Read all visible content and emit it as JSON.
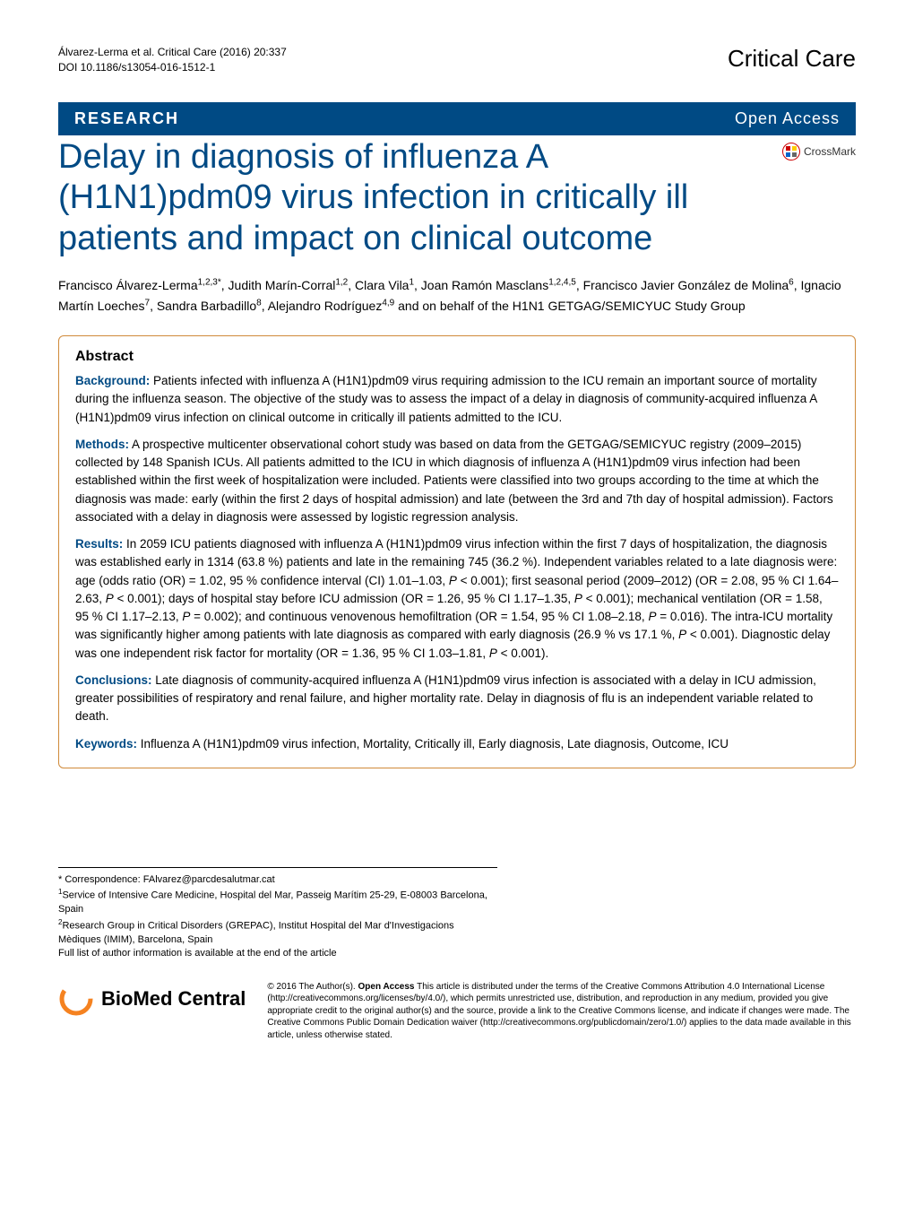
{
  "header": {
    "citation_line1": "Álvarez-Lerma et al. Critical Care  (2016) 20:337",
    "citation_line2": "DOI 10.1186/s13054-016-1512-1",
    "journal": "Critical Care"
  },
  "banner": {
    "left": "RESEARCH",
    "right": "Open Access"
  },
  "crossmark_label": "CrossMark",
  "title": "Delay in diagnosis of influenza A (H1N1)pdm09 virus infection in critically ill patients and impact on clinical outcome",
  "authors_html": "Francisco Álvarez-Lerma<sup>1,2,3*</sup>, Judith Marín-Corral<sup>1,2</sup>, Clara Vila<sup>1</sup>, Joan Ramón Masclans<sup>1,2,4,5</sup>, Francisco Javier González de Molina<sup>6</sup>, Ignacio Martín Loeches<sup>7</sup>, Sandra Barbadillo<sup>8</sup>, Alejandro Rodríguez<sup>4,9</sup> and on behalf of the H1N1 GETGAG/SEMICYUC Study Group",
  "abstract": {
    "heading": "Abstract",
    "background": {
      "label": "Background:",
      "text": " Patients infected with influenza A (H1N1)pdm09 virus requiring admission to the ICU remain an important source of mortality during the influenza season. The objective of the study was to assess the impact of a delay in diagnosis of community-acquired influenza A (H1N1)pdm09 virus infection on clinical outcome in critically ill patients admitted to the ICU."
    },
    "methods": {
      "label": "Methods:",
      "text": " A prospective multicenter observational cohort study was based on data from the GETGAG/SEMICYUC registry (2009–2015) collected by 148 Spanish ICUs. All patients admitted to the ICU in which diagnosis of influenza A (H1N1)pdm09 virus infection had been established within the first week of hospitalization were included. Patients were classified into two groups according to the time at which the diagnosis was made: early (within the first 2 days of hospital admission) and late (between the 3rd and 7th day of hospital admission). Factors associated with a delay in diagnosis were assessed by logistic regression analysis."
    },
    "results": {
      "label": "Results:",
      "text_html": " In 2059 ICU patients diagnosed with influenza A (H1N1)pdm09 virus infection within the first 7 days of hospitalization, the diagnosis was established early in 1314 (63.8 %) patients and late in the remaining 745 (36.2 %). Independent variables related to a late diagnosis were: age (odds ratio (OR) = 1.02, 95 % confidence interval (CI) 1.01–1.03, <span class=\"italic\">P</span> &lt; 0.001); first seasonal period (2009–2012) (OR = 2.08, 95 % CI 1.64–2.63, <span class=\"italic\">P</span> &lt; 0.001); days of hospital stay before ICU admission (OR = 1.26, 95 % CI 1.17–1.35, <span class=\"italic\">P</span> &lt; 0.001); mechanical ventilation (OR = 1.58, 95 % CI 1.17–2.13, <span class=\"italic\">P</span> = 0.002); and continuous venovenous hemofiltration (OR = 1.54, 95 % CI 1.08–2.18, <span class=\"italic\">P</span> = 0.016). The intra-ICU mortality was significantly higher among patients with late diagnosis as compared with early diagnosis (26.9 % vs 17.1 %, <span class=\"italic\">P</span> &lt; 0.001). Diagnostic delay was one independent risk factor for mortality (OR = 1.36, 95 % CI 1.03–1.81, <span class=\"italic\">P</span> &lt; 0.001)."
    },
    "conclusions": {
      "label": "Conclusions:",
      "text": " Late diagnosis of community-acquired influenza A (H1N1)pdm09 virus infection is associated with a delay in ICU admission, greater possibilities of respiratory and renal failure, and higher mortality rate. Delay in diagnosis of flu is an independent variable related to death."
    },
    "keywords": {
      "label": "Keywords:",
      "text": " Influenza A (H1N1)pdm09 virus infection, Mortality, Critically ill, Early diagnosis, Late diagnosis, Outcome, ICU"
    }
  },
  "footer": {
    "correspondence": "* Correspondence: FAlvarez@parcdesalutmar.cat",
    "affil1_html": "<sup>1</sup>Service of Intensive Care Medicine, Hospital del Mar, Passeig Marítim 25-29, E-08003 Barcelona, Spain",
    "affil2_html": "<sup>2</sup>Research Group in Critical Disorders (GREPAC), Institut Hospital del Mar d'Investigacions Mèdiques (IMIM), Barcelona, Spain",
    "full_list": "Full list of author information is available at the end of the article"
  },
  "bmc": {
    "logo_text": "BioMed Central",
    "license_html": "© 2016 The Author(s). <span class=\"bold\">Open Access</span> This article is distributed under the terms of the Creative Commons Attribution 4.0 International License (http://creativecommons.org/licenses/by/4.0/), which permits unrestricted use, distribution, and reproduction in any medium, provided you give appropriate credit to the original author(s) and the source, provide a link to the Creative Commons license, and indicate if changes were made. The Creative Commons Public Domain Dedication waiver (http://creativecommons.org/publicdomain/zero/1.0/) applies to the data made available in this article, unless otherwise stated."
  },
  "colors": {
    "brand_blue": "#004a84",
    "abstract_border": "#d08a3a",
    "crossmark_red": "#cc0000",
    "bmc_orange": "#f58220"
  }
}
